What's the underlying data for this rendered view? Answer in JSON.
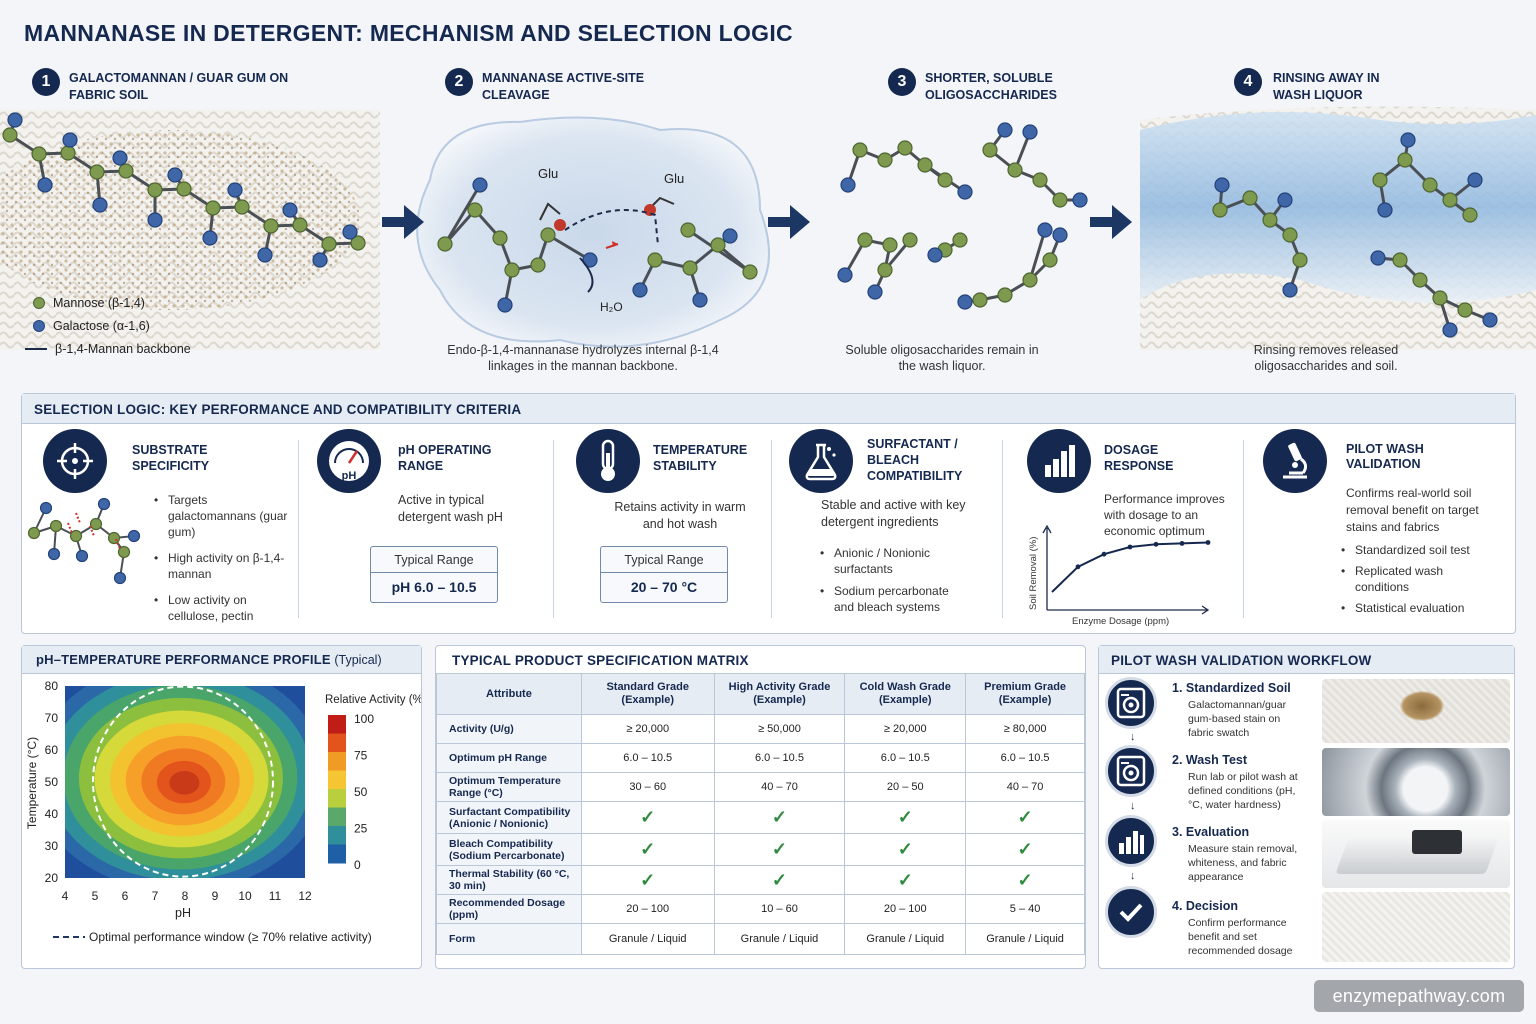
{
  "title": "MANNANASE IN DETERGENT: MECHANISM AND SELECTION LOGIC",
  "steps": [
    {
      "num": "1",
      "label": "GALACTOMANNAN / GUAR GUM ON FABRIC SOIL",
      "caption": ""
    },
    {
      "num": "2",
      "label": "MANNANASE ACTIVE-SITE CLEAVAGE",
      "caption": "Endo-β-1,4-mannanase hydrolyzes internal β-1,4 linkages in the mannan backbone."
    },
    {
      "num": "3",
      "label": "SHORTER, SOLUBLE OLIGOSACCHARIDES",
      "caption": "Soluble oligosaccharides remain in the wash liquor."
    },
    {
      "num": "4",
      "label": "RINSING AWAY IN WASH LIQUOR",
      "caption": "Rinsing removes released oligosaccharides and soil."
    }
  ],
  "molecule_legend": {
    "mannose": "Mannose (β-1,4)",
    "galactose": "Galactose (α-1,6)",
    "backbone": "β-1,4-Mannan backbone",
    "colors": {
      "mannose": "#7e9a4e",
      "galactose": "#3f67a8"
    }
  },
  "cleavage_labels": {
    "glu1": "Glu",
    "glu2": "Glu",
    "water": "H₂O"
  },
  "selection": {
    "title": "SELECTION LOGIC: KEY PERFORMANCE  AND COMPATIBILITY CRITERIA",
    "criteria": [
      {
        "icon": "target-icon",
        "title": "SUBSTRATE SPECIFICITY",
        "bullets": [
          "Targets galactomannans (guar gum)",
          "High activity on β-1,4-mannan",
          "Low activity on cellulose, pectin"
        ]
      },
      {
        "icon": "gauge-icon",
        "title": "pH OPERATING RANGE",
        "text": "Active in typical detergent wash pH",
        "range_label": "Typical Range",
        "range_value": "pH 6.0 – 10.5",
        "icon_text": "pH"
      },
      {
        "icon": "thermometer-icon",
        "title": "TEMPERATURE STABILITY",
        "text": "Retains activity in warm and hot wash",
        "range_label": "Typical Range",
        "range_value": "20 – 70 °C"
      },
      {
        "icon": "flask-icon",
        "title": "SURFACTANT / BLEACH COMPATIBILITY",
        "text": "Stable and active with key detergent ingredients",
        "bullets": [
          "Anionic / Nonionic surfactants",
          "Sodium percarbonate and bleach systems"
        ]
      },
      {
        "icon": "bar-chart-icon",
        "title": "DOSAGE RESPONSE",
        "text": "Performance improves with dosage to an economic optimum",
        "xlabel": "Enzyme Dosage (ppm)",
        "ylabel": "Soil Removal (%)"
      },
      {
        "icon": "microscope-icon",
        "title": "PILOT WASH VALIDATION",
        "text": "Confirms real-world soil removal benefit on target stains and fabrics",
        "bullets": [
          "Standardized soil test",
          "Replicated wash conditions",
          "Statistical evaluation"
        ]
      }
    ]
  },
  "heatmap": {
    "title": "pH–TEMPERATURE PERFORMANCE PROFILE",
    "title_suffix": "(Typical)",
    "legend_title": "Relative Activity (%)",
    "legend_ticks": [
      "100",
      "75",
      "50",
      "25",
      "0"
    ],
    "footnote": "Optimal performance window (≥ 70% relative activity)"
  },
  "chart_data": [
    {
      "type": "heatmap",
      "title": "pH–TEMPERATURE PERFORMANCE PROFILE (Typical)",
      "xlabel": "pH",
      "ylabel": "Temperature (°C)",
      "x_ticks": [
        "4",
        "5",
        "6",
        "7",
        "8",
        "9",
        "10",
        "11",
        "12"
      ],
      "y_ticks": [
        "80",
        "70",
        "60",
        "50",
        "40",
        "30",
        "20"
      ],
      "xlim": [
        4,
        12
      ],
      "ylim": [
        20,
        80
      ],
      "colorbar": {
        "label": "Relative Activity (%)",
        "range": [
          0,
          100
        ]
      },
      "peak": {
        "pH": 7.8,
        "temperature": 52,
        "value": 100
      },
      "optimal_window_threshold": 70
    },
    {
      "type": "line",
      "title": "DOSAGE RESPONSE",
      "xlabel": "Enzyme Dosage (ppm)",
      "ylabel": "Soil Removal (%)",
      "x": [
        0,
        1,
        2,
        3,
        4,
        5,
        6
      ],
      "y": [
        20,
        48,
        62,
        70,
        73,
        74,
        75
      ]
    }
  ],
  "matrix": {
    "title": "TYPICAL PRODUCT SPECIFICATION MATRIX",
    "headers": [
      "Attribute",
      "Standard Grade (Example)",
      "High Activity Grade (Example)",
      "Cold Wash Grade (Example)",
      "Premium Grade (Example)"
    ],
    "rows": [
      {
        "attr": "Activity (U/g)",
        "vals": [
          "≥ 20,000",
          "≥ 50,000",
          "≥ 20,000",
          "≥ 80,000"
        ]
      },
      {
        "attr": "Optimum pH Range",
        "vals": [
          "6.0 – 10.5",
          "6.0 – 10.5",
          "6.0 – 10.5",
          "6.0 – 10.5"
        ]
      },
      {
        "attr": "Optimum Temperature Range (°C)",
        "vals": [
          "30 – 60",
          "40 – 70",
          "20 – 50",
          "40 – 70"
        ]
      },
      {
        "attr": "Surfactant Compatibility (Anionic / Nonionic)",
        "vals": [
          "✓",
          "✓",
          "✓",
          "✓"
        ]
      },
      {
        "attr": "Bleach Compatibility (Sodium Percarbonate)",
        "vals": [
          "✓",
          "✓",
          "✓",
          "✓"
        ]
      },
      {
        "attr": "Thermal Stability (60 °C, 30 min)",
        "vals": [
          "✓",
          "✓",
          "✓",
          "✓"
        ]
      },
      {
        "attr": "Recommended Dosage (ppm)",
        "vals": [
          "20 – 100",
          "10 – 60",
          "20 – 100",
          "5 – 40"
        ]
      },
      {
        "attr": "Form",
        "vals": [
          "Granule / Liquid",
          "Granule / Liquid",
          "Granule / Liquid",
          "Granule / Liquid"
        ]
      }
    ]
  },
  "workflow": {
    "title": "PILOT WASH VALIDATION WORKFLOW",
    "steps": [
      {
        "title": "1.  Standardized Soil",
        "text": "Galactomannan/guar gum-based stain on fabric swatch",
        "icon": "washing-machine-icon"
      },
      {
        "title": "2.  Wash Test",
        "text": "Run lab or pilot wash at defined conditions (pH, °C, water hardness)",
        "icon": "washing-machine-icon"
      },
      {
        "title": "3.  Evaluation",
        "text": "Measure stain removal, whiteness, and fabric appearance",
        "icon": "bar-chart-icon"
      },
      {
        "title": "4.  Decision",
        "text": "Confirm performance benefit and set recommended dosage",
        "icon": "checkmark-icon"
      }
    ]
  },
  "watermark": "enzymepathway.com"
}
